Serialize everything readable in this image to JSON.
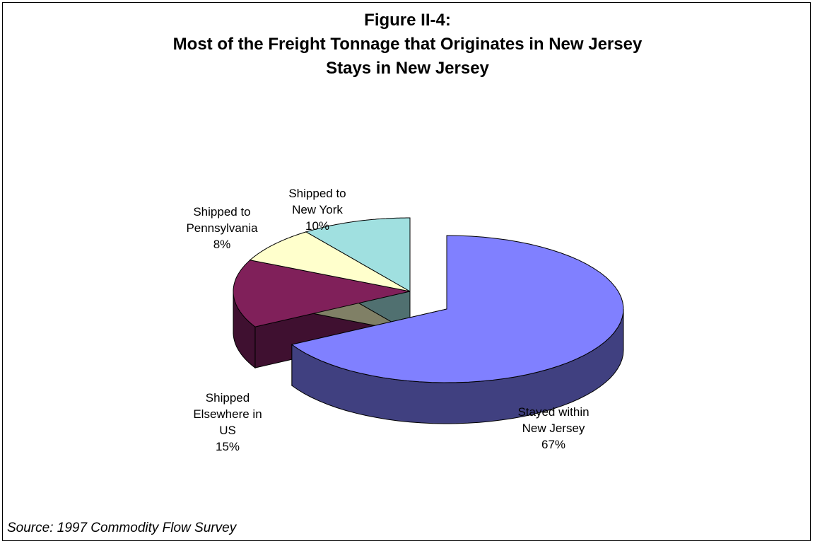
{
  "chart_data": {
    "type": "pie",
    "title": [
      "Figure II-4:",
      "Most of the Freight Tonnage that Originates in New Jersey",
      "Stays in New Jersey"
    ],
    "slices": [
      {
        "label": [
          "Stayed within",
          "New Jersey"
        ],
        "value": 67,
        "value_label": "67%",
        "color": "#8080ff",
        "side_color": "#404080",
        "exploded": true
      },
      {
        "label": [
          "Shipped",
          "Elsewhere in",
          "US"
        ],
        "value": 15,
        "value_label": "15%",
        "color": "#80205a",
        "side_color": "#3f1030",
        "exploded": false
      },
      {
        "label": [
          "Shipped to",
          "Pennsylvania"
        ],
        "value": 8,
        "value_label": "8%",
        "color": "#ffffcc",
        "side_color": "#808066",
        "exploded": false
      },
      {
        "label": [
          "Shipped to",
          "New York"
        ],
        "value": 10,
        "value_label": "10%",
        "color": "#a0e0e0",
        "side_color": "#507070",
        "exploded": false
      }
    ],
    "style": "3d-exploded",
    "legend": "none"
  },
  "source": "Source:  1997 Commodity Flow Survey"
}
